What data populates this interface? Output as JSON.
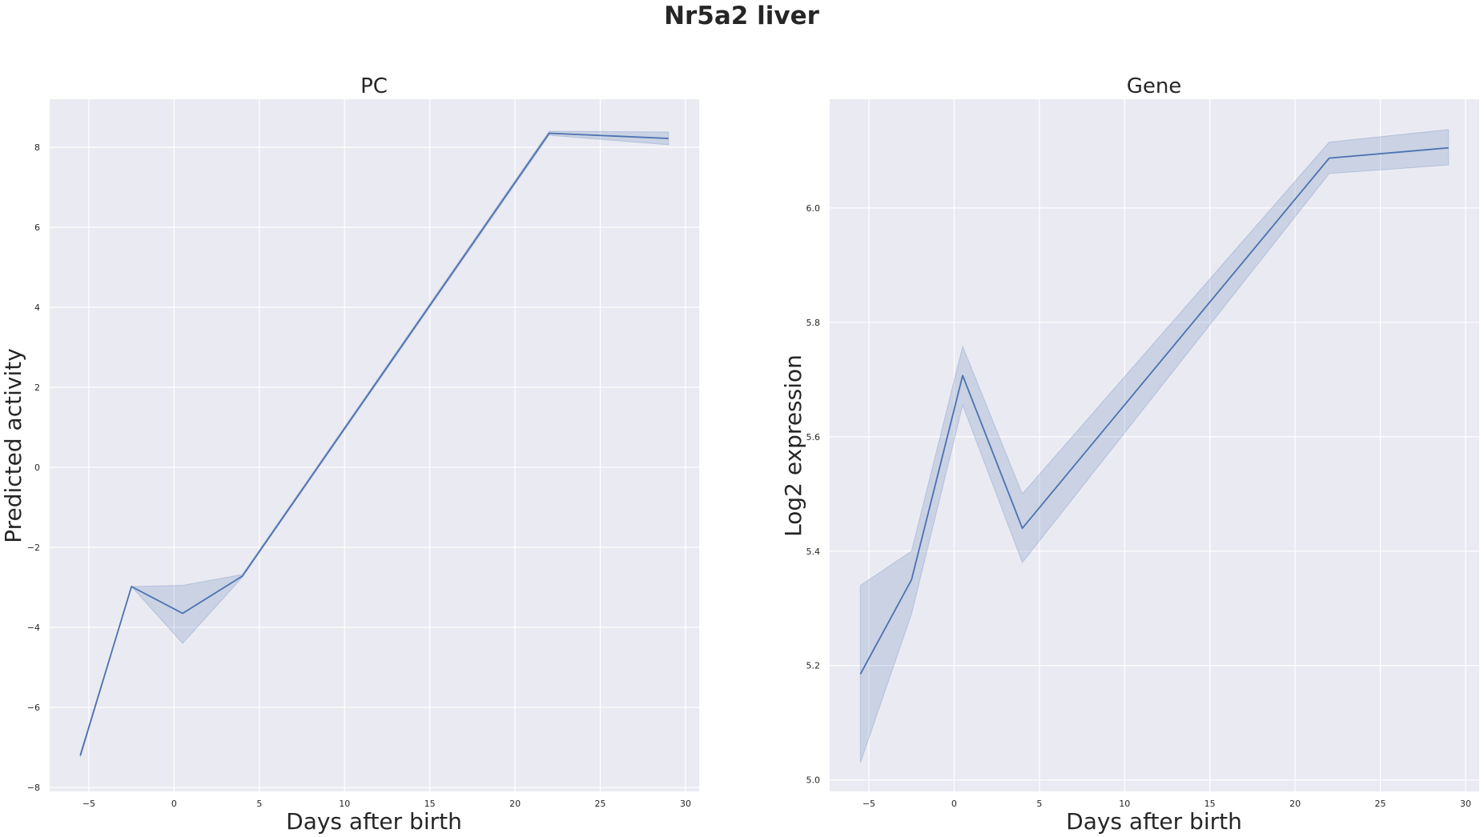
{
  "figure": {
    "title": "Nr5a2 liver",
    "background": "#ffffff",
    "axes_facecolor": "#eaeaf2",
    "grid_color": "#ffffff",
    "line_color": "#4c72b0"
  },
  "chart_data": [
    {
      "type": "line",
      "title": "PC",
      "xlabel": "Days after birth",
      "ylabel": "Predicted activity",
      "xlim": [
        -7.3,
        30.8
      ],
      "ylim": [
        -8.1,
        9.2
      ],
      "xticks": [
        -5,
        0,
        5,
        10,
        15,
        20,
        25,
        30
      ],
      "yticks": [
        -8,
        -6,
        -4,
        -2,
        0,
        2,
        4,
        6,
        8
      ],
      "grid": true,
      "series": [
        {
          "x": [
            -5.5,
            -2.5,
            0.5,
            4,
            22,
            29
          ],
          "y": [
            -7.2,
            -2.98,
            -3.65,
            -2.72,
            8.35,
            8.22
          ],
          "ci_lower": [
            -7.25,
            -2.98,
            -4.4,
            -2.75,
            8.3,
            8.06
          ],
          "ci_upper": [
            -7.15,
            -2.98,
            -2.95,
            -2.68,
            8.4,
            8.38
          ]
        }
      ]
    },
    {
      "type": "line",
      "title": "Gene",
      "xlabel": "Days after birth",
      "ylabel": "Log2 expression",
      "xlim": [
        -7.3,
        30.8
      ],
      "ylim": [
        4.98,
        6.19
      ],
      "xticks": [
        -5,
        0,
        5,
        10,
        15,
        20,
        25,
        30
      ],
      "yticks": [
        5.0,
        5.2,
        5.4,
        5.6,
        5.8,
        6.0
      ],
      "grid": true,
      "series": [
        {
          "x": [
            -5.5,
            -2.5,
            0.5,
            4,
            22,
            29
          ],
          "y": [
            5.185,
            5.35,
            5.707,
            5.44,
            6.087,
            6.105
          ],
          "ci_lower": [
            5.03,
            5.29,
            5.655,
            5.38,
            6.06,
            6.075
          ],
          "ci_upper": [
            5.34,
            5.4,
            5.758,
            5.5,
            6.115,
            6.137
          ]
        }
      ]
    }
  ]
}
